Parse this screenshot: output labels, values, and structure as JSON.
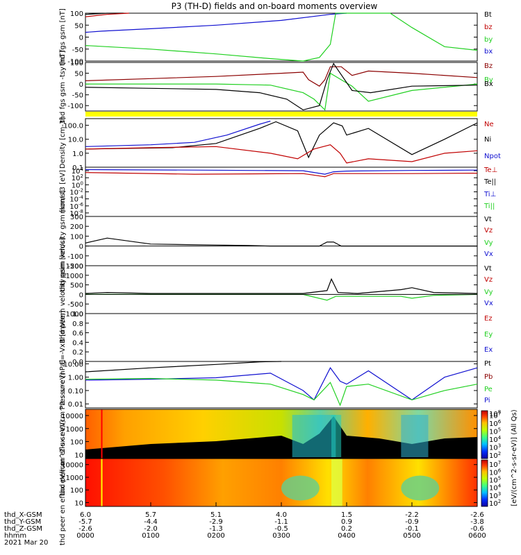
{
  "title": "P3 (TH-D) fields and on-board moments overview",
  "date_label": "2021 Mar 20",
  "time_axis": {
    "row_labels": [
      "thd_X-GSM",
      "thd_Y-GSM",
      "thd_Z-GSM",
      "hhmm"
    ],
    "columns": [
      [
        "6.0",
        "-5.7",
        "-2.6",
        "0000"
      ],
      [
        "5.7",
        "-4.4",
        "-2.0",
        "0100"
      ],
      [
        "5.1",
        "-2.9",
        "-1.3",
        "0200"
      ],
      [
        "4.0",
        "-1.1",
        "-0.5",
        "0300"
      ],
      [
        "1.5",
        "0.9",
        "0.2",
        "0400"
      ],
      [
        "-2.2",
        "-0.9",
        "-0.1",
        "0500"
      ],
      [
        "-2.6",
        "-3.8",
        "-0.6",
        "0600"
      ]
    ],
    "range_minutes": [
      0,
      360
    ]
  },
  "colors": {
    "black": "#000000",
    "red": "#c00000",
    "darkred": "#8b0000",
    "green": "#20d020",
    "blue": "#1010d0",
    "yellow": "#ffff00"
  },
  "chart_data": [
    {
      "type": "line",
      "ylabel": "thd fgs gsm [nT]",
      "ylim": [
        -100,
        100
      ],
      "ticks": [
        "100",
        "50",
        "0",
        "-50",
        "-100"
      ],
      "tick_values": [
        100,
        50,
        0,
        -50,
        -100
      ],
      "legend": [
        "Bt",
        "bz",
        "by",
        "bx"
      ],
      "legend_colors": [
        "black",
        "red",
        "green",
        "blue"
      ],
      "series": [
        {
          "name": "Bt",
          "color": "black",
          "x": [
            0,
            20,
            35
          ],
          "y": [
            95,
            100,
            105
          ]
        },
        {
          "name": "bz",
          "color": "red",
          "x": [
            0,
            20,
            40
          ],
          "y": [
            85,
            95,
            105
          ]
        },
        {
          "name": "bx",
          "color": "blue",
          "x": [
            0,
            15,
            60,
            120,
            180,
            225,
            240
          ],
          "y": [
            20,
            25,
            35,
            50,
            70,
            95,
            110
          ]
        },
        {
          "name": "by",
          "color": "green",
          "x": [
            0,
            20,
            60,
            120,
            170,
            200,
            215,
            225,
            230,
            280,
            300,
            330,
            360
          ],
          "y": [
            -35,
            -40,
            -50,
            -70,
            -90,
            -100,
            -85,
            -30,
            110,
            110,
            40,
            -40,
            -55
          ]
        }
      ]
    },
    {
      "type": "line",
      "ylabel": "thd fgs gsm -tsy [nT]",
      "ylim": [
        -125,
        100
      ],
      "ticks": [
        "100",
        "50",
        "0",
        "-50",
        "-100"
      ],
      "tick_values": [
        100,
        50,
        0,
        -50,
        -100
      ],
      "legend": [
        "Bz",
        "By",
        "Bx"
      ],
      "legend_colors": [
        "darkred",
        "green",
        "black"
      ],
      "series": [
        {
          "name": "Bz",
          "color": "darkred",
          "x": [
            0,
            60,
            120,
            180,
            200,
            205,
            215,
            220,
            225,
            235,
            245,
            260,
            300,
            360
          ],
          "y": [
            15,
            25,
            35,
            50,
            55,
            20,
            -10,
            20,
            80,
            80,
            40,
            60,
            50,
            30
          ]
        },
        {
          "name": "By",
          "color": "green",
          "x": [
            0,
            60,
            120,
            170,
            200,
            210,
            220,
            225,
            245,
            260,
            300,
            360
          ],
          "y": [
            0,
            0,
            0,
            -5,
            -40,
            -70,
            -120,
            50,
            -10,
            -80,
            -30,
            0
          ]
        },
        {
          "name": "Bx",
          "color": "black",
          "x": [
            0,
            60,
            120,
            160,
            185,
            200,
            215,
            222,
            228,
            245,
            262,
            300,
            360
          ],
          "y": [
            -15,
            -20,
            -25,
            -40,
            -70,
            -120,
            -100,
            20,
            95,
            -30,
            -40,
            -10,
            -5
          ]
        }
      ]
    },
    {
      "type": "line",
      "ylabel": "Density [cm-3]",
      "ylim": [
        0.1,
        300
      ],
      "log_scale": true,
      "ticks": [
        "100.0",
        "10.0",
        "1.0",
        "0.1"
      ],
      "tick_values": [
        100,
        10,
        1,
        0.1
      ],
      "legend": [
        "Ne",
        "Ni",
        "Npot"
      ],
      "legend_colors": [
        "red",
        "black",
        "blue"
      ],
      "series": [
        {
          "name": "Ni",
          "color": "black",
          "x": [
            0,
            80,
            120,
            160,
            175,
            195,
            205,
            215,
            228,
            236,
            240,
            260,
            300,
            330,
            360
          ],
          "y": [
            2,
            2.5,
            5,
            60,
            180,
            40,
            0.5,
            20,
            150,
            90,
            20,
            60,
            0.8,
            10,
            150
          ]
        },
        {
          "name": "Ne",
          "color": "red",
          "x": [
            0,
            60,
            120,
            170,
            195,
            210,
            225,
            234,
            240,
            260,
            300,
            330,
            360
          ],
          "y": [
            2,
            2.5,
            3,
            1,
            0.4,
            2,
            4,
            1,
            0.2,
            0.4,
            0.25,
            1,
            1.5
          ]
        },
        {
          "name": "Npot",
          "color": "blue",
          "x": [
            0,
            60,
            100,
            130,
            160,
            170
          ],
          "y": [
            3,
            4,
            6,
            20,
            120,
            200
          ]
        }
      ]
    },
    {
      "type": "line",
      "ylabel": "mom t3 [eV]",
      "ylim": [
        1e-09,
        100000.0
      ],
      "log_scale": true,
      "ticks": [
        "10^4",
        "10^2",
        "10^0",
        "10^-2",
        "10^-4",
        "10^-6",
        "10^-8"
      ],
      "tick_values": [
        10000,
        100,
        1,
        0.01,
        0.0001,
        1e-06,
        1e-08
      ],
      "legend": [
        "Te⊥",
        "Te||",
        "Ti⊥",
        "Ti||"
      ],
      "legend_colors": [
        "red",
        "black",
        "blue",
        "green"
      ],
      "series": [
        {
          "name": "Ti⊥",
          "color": "blue",
          "x": [
            0,
            100,
            200,
            220,
            228,
            240,
            300,
            360
          ],
          "y": [
            20000,
            15000,
            10000,
            1000,
            5000,
            8000,
            12000,
            15000
          ]
        },
        {
          "name": "Te⊥",
          "color": "red",
          "x": [
            0,
            100,
            200,
            220,
            228,
            240,
            300,
            360
          ],
          "y": [
            3000,
            1000,
            1500,
            200,
            1500,
            1500,
            1500,
            2000
          ]
        }
      ]
    },
    {
      "type": "line",
      "ylabel": "thd peim velocity gsm [km/s]",
      "ylim": [
        -200,
        300
      ],
      "ticks": [
        "300",
        "200",
        "100",
        "0",
        "-100",
        "-200"
      ],
      "tick_values": [
        300,
        200,
        100,
        0,
        -100,
        -200
      ],
      "legend": [
        "Vt",
        "Vz",
        "Vy",
        "Vx"
      ],
      "legend_colors": [
        "black",
        "red",
        "green",
        "blue"
      ],
      "series": [
        {
          "name": "Vt",
          "color": "black",
          "x": [
            0,
            20,
            60,
            120,
            150,
            170,
            215,
            222,
            228,
            235,
            360
          ],
          "y": [
            30,
            80,
            20,
            10,
            5,
            0,
            0,
            40,
            40,
            0,
            0
          ]
        }
      ]
    },
    {
      "type": "line",
      "ylabel": "thd peem velocity gsm [km/s]",
      "ylim": [
        -1000,
        1500
      ],
      "ticks": [
        "1500",
        "1000",
        "500",
        "0",
        "-500",
        "-1000"
      ],
      "tick_values": [
        1500,
        1000,
        500,
        0,
        -500,
        -1000
      ],
      "legend": [
        "Vt",
        "Vz",
        "Vy",
        "Vx"
      ],
      "legend_colors": [
        "black",
        "red",
        "green",
        "blue"
      ],
      "series": [
        {
          "name": "Vt",
          "color": "black",
          "x": [
            0,
            20,
            60,
            200,
            222,
            226,
            232,
            250,
            290,
            300,
            320,
            360
          ],
          "y": [
            50,
            100,
            50,
            50,
            200,
            800,
            100,
            50,
            250,
            350,
            100,
            50
          ]
        },
        {
          "name": "Vy",
          "color": "green",
          "x": [
            0,
            200,
            222,
            230,
            290,
            300,
            320,
            360
          ],
          "y": [
            0,
            0,
            -300,
            -100,
            -100,
            -200,
            -50,
            0
          ]
        }
      ]
    },
    {
      "type": "line",
      "ylabel": "E=-VxB [mV/m]",
      "ylim": [
        0,
        1
      ],
      "ticks": [
        "1.0",
        "0.8",
        "0.6",
        "0.4",
        "0.2",
        "0.0"
      ],
      "tick_values": [
        1,
        0.8,
        0.6,
        0.4,
        0.2,
        0
      ],
      "legend": [
        "Ez",
        "Ey",
        "Ex"
      ],
      "legend_colors": [
        "red",
        "green",
        "blue"
      ],
      "series": []
    },
    {
      "type": "line",
      "ylabel": "Pressure [nPa]",
      "ylim": [
        0.005,
        15
      ],
      "log_scale": true,
      "ticks": [
        "10.00",
        "1.00",
        "0.10",
        "0.01"
      ],
      "tick_values": [
        10,
        1,
        0.1,
        0.01
      ],
      "legend": [
        "Pt",
        "Pb",
        "Pe",
        "Pi"
      ],
      "legend_colors": [
        "black",
        "darkred",
        "green",
        "blue"
      ],
      "series": [
        {
          "name": "Pt",
          "color": "black",
          "x": [
            0,
            60,
            120,
            160,
            180
          ],
          "y": [
            2.5,
            5,
            9,
            14,
            20
          ]
        },
        {
          "name": "Pi",
          "color": "blue",
          "x": [
            0,
            60,
            120,
            170,
            200,
            210,
            225,
            234,
            240,
            260,
            300,
            330,
            360
          ],
          "y": [
            0.6,
            0.7,
            0.9,
            2,
            0.1,
            0.02,
            5,
            0.5,
            0.3,
            3,
            0.02,
            1,
            5
          ]
        },
        {
          "name": "Pe",
          "color": "green",
          "x": [
            0,
            60,
            120,
            170,
            200,
            210,
            225,
            234,
            240,
            260,
            300,
            330,
            360
          ],
          "y": [
            0.7,
            0.8,
            0.6,
            0.3,
            0.05,
            0.02,
            0.4,
            0.008,
            0.2,
            0.3,
            0.02,
            0.1,
            0.3
          ]
        }
      ]
    },
    {
      "type": "heatmap",
      "ylabel": "thd peir en eflux eV/(cm^2-s-sr-eV)",
      "ylim": [
        5,
        30000
      ],
      "log_scale": true,
      "ticks": [
        "10000",
        "1000",
        "100",
        "10"
      ],
      "tick_values": [
        10000,
        1000,
        100,
        10
      ]
    },
    {
      "type": "heatmap",
      "ylabel": "thd peer en eflux eV/(cm^2-s-sr-eV)",
      "ylim": [
        5,
        30000
      ],
      "log_scale": true,
      "ticks": [
        "10000",
        "1000",
        "100",
        "10"
      ],
      "tick_values": [
        10000,
        1000,
        100,
        10
      ]
    }
  ],
  "colorbar": {
    "label": "[eV/(cm^2-s-sr-eV)] (All Qs)",
    "top_tick": "10^8",
    "ticks": [
      "10^7",
      "10^6",
      "10^5",
      "10^4",
      "10^3",
      "10^2"
    ]
  }
}
